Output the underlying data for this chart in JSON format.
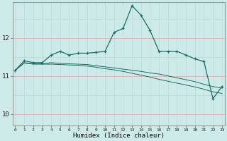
{
  "title": "",
  "xlabel": "Humidex (Indice chaleur)",
  "ylabel": "",
  "bg_color": "#cceae8",
  "grid_color_v": "#c0d8d8",
  "grid_color_h": "#f0a0a0",
  "line_color": "#1a6e65",
  "x_ticks": [
    0,
    1,
    2,
    3,
    4,
    5,
    6,
    7,
    8,
    9,
    10,
    11,
    12,
    13,
    14,
    15,
    16,
    17,
    18,
    19,
    20,
    21,
    22,
    23
  ],
  "y_ticks": [
    10,
    11,
    12
  ],
  "ylim": [
    9.7,
    12.95
  ],
  "xlim": [
    -0.3,
    23.3
  ],
  "series1": [
    11.15,
    11.4,
    11.35,
    11.35,
    11.55,
    11.65,
    11.55,
    11.6,
    11.6,
    11.62,
    11.65,
    12.15,
    12.25,
    12.85,
    12.6,
    12.2,
    11.65,
    11.65,
    11.65,
    11.55,
    11.45,
    11.38,
    10.4,
    10.72
  ],
  "series2": [
    11.15,
    11.35,
    11.32,
    11.32,
    11.35,
    11.33,
    11.32,
    11.31,
    11.3,
    11.27,
    11.24,
    11.21,
    11.18,
    11.15,
    11.12,
    11.08,
    11.05,
    11.0,
    10.95,
    10.9,
    10.85,
    10.78,
    10.72,
    10.68
  ],
  "series3": [
    11.15,
    11.34,
    11.31,
    11.31,
    11.31,
    11.3,
    11.29,
    11.28,
    11.26,
    11.23,
    11.19,
    11.16,
    11.12,
    11.07,
    11.02,
    10.97,
    10.91,
    10.86,
    10.81,
    10.76,
    10.71,
    10.65,
    10.58,
    10.54
  ]
}
